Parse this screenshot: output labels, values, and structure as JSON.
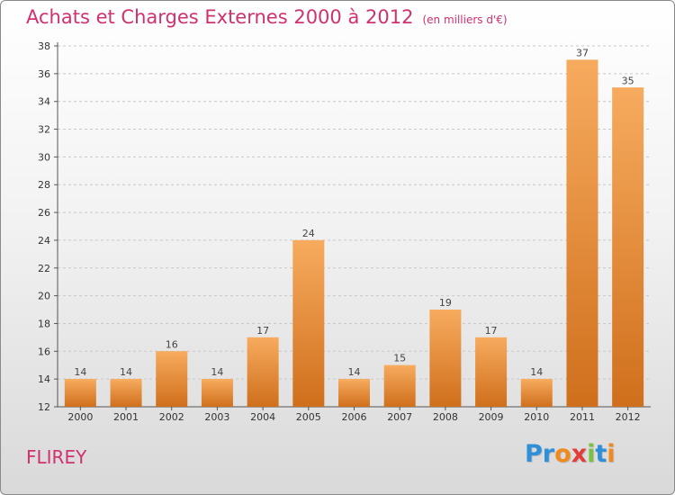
{
  "header": {
    "title": "Achats et Charges Externes 2000 à 2012",
    "subtitle": "(en milliers d'€)"
  },
  "footer": {
    "place": "FLIREY",
    "logo_letters": [
      "P",
      "r",
      "o",
      "x",
      "i",
      "t",
      "i"
    ],
    "logo_colors": [
      "#2f8fd8",
      "#2f8fd8",
      "#f08a1c",
      "#e23c3c",
      "#7cc242",
      "#2f8fd8",
      "#f08a1c"
    ]
  },
  "chart_data": {
    "type": "bar",
    "categories": [
      "2000",
      "2001",
      "2002",
      "2003",
      "2004",
      "2005",
      "2006",
      "2007",
      "2008",
      "2009",
      "2010",
      "2011",
      "2012"
    ],
    "values": [
      14,
      14,
      16,
      14,
      17,
      24,
      14,
      15,
      19,
      17,
      14,
      37,
      35
    ],
    "ylim": [
      12,
      38
    ],
    "yticks": [
      12,
      14,
      16,
      18,
      20,
      22,
      24,
      26,
      28,
      30,
      32,
      34,
      36,
      38
    ],
    "grid": true,
    "bar_color": "#f0923a",
    "bar_color_light": "#f7ab5e",
    "bar_color_dark": "#cf6f1c"
  }
}
